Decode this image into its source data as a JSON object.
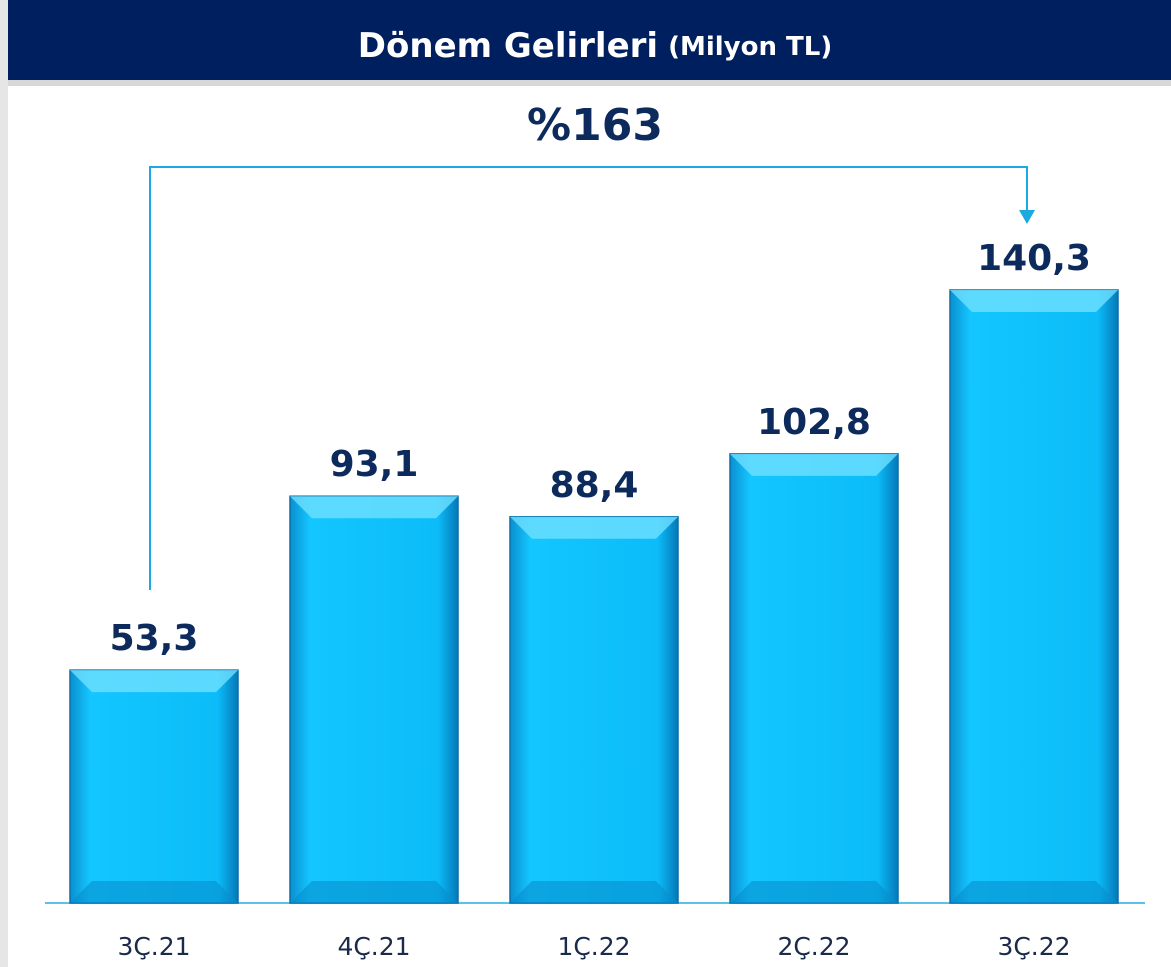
{
  "chart_data": {
    "type": "bar",
    "title": "Dönem Gelirleri",
    "subtitle": "(Milyon TL)",
    "annotation": "%163",
    "categories": [
      "3Ç.21",
      "4Ç.21",
      "1Ç.22",
      "2Ç.22",
      "3Ç.22"
    ],
    "values": [
      53.3,
      93.1,
      88.4,
      102.8,
      140.3
    ],
    "value_labels": [
      "53,3",
      "93,1",
      "88,4",
      "102,8",
      "140,3"
    ],
    "color": "#0fc0fb"
  }
}
